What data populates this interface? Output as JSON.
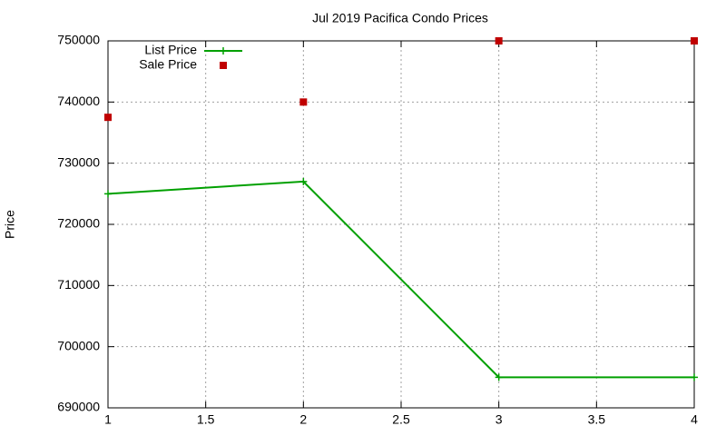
{
  "chart_data": {
    "type": "line",
    "title": "Jul 2019 Pacifica Condo Prices",
    "y_label": "Price",
    "x": [
      1,
      2,
      3,
      4
    ],
    "series": [
      {
        "name": "List Price",
        "color": "#00a000",
        "marker": "plus",
        "line": true,
        "values": [
          725000,
          727000,
          695000,
          695000
        ]
      },
      {
        "name": "Sale Price",
        "color": "#c00000",
        "marker": "square",
        "line": false,
        "values": [
          737500,
          740000,
          750000,
          750000
        ]
      }
    ],
    "xlim": [
      1,
      4
    ],
    "xticks": [
      1,
      1.5,
      2,
      2.5,
      3,
      3.5,
      4
    ],
    "ylim": [
      690000,
      750000
    ],
    "yticks": [
      690000,
      700000,
      710000,
      720000,
      730000,
      740000,
      750000
    ],
    "grid": true,
    "legend": "top-left"
  }
}
